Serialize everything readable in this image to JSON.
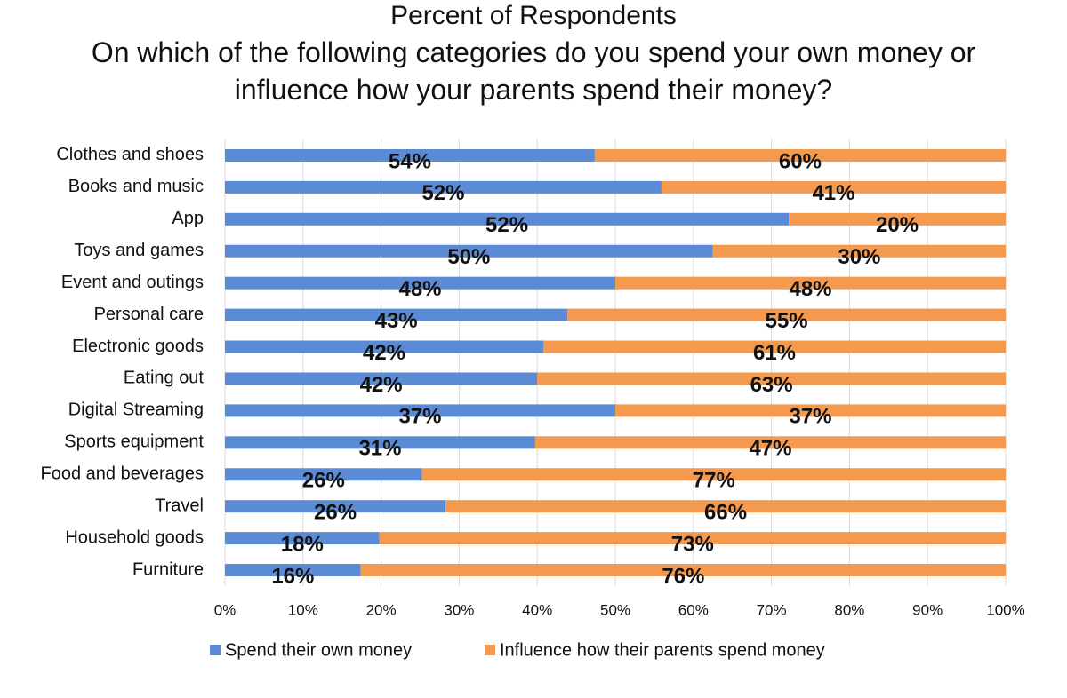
{
  "chart_data": {
    "type": "bar",
    "orientation": "horizontal",
    "stacking": "percent",
    "title": "Percent of Respondents",
    "subtitle": "On which of the following categories do you spend your own money or influence how your parents spend their money?",
    "categories": [
      "Clothes and shoes",
      "Books and music",
      "App",
      "Toys and games",
      "Event and outings",
      "Personal care",
      "Electronic goods",
      "Eating out",
      "Digital Streaming",
      "Sports equipment",
      "Food and beverages",
      "Travel",
      "Household goods",
      "Furniture"
    ],
    "series": [
      {
        "name": "Spend their own money",
        "color": "#5b8bd4",
        "values": [
          54,
          52,
          52,
          50,
          48,
          43,
          42,
          42,
          37,
          31,
          26,
          26,
          18,
          16
        ],
        "value_labels": [
          "54%",
          "52%",
          "52%",
          "50%",
          "48%",
          "43%",
          "42%",
          "42%",
          "37%",
          "31%",
          "26%",
          "26%",
          "18%",
          "16%"
        ]
      },
      {
        "name": "Influence how their parents spend money",
        "color": "#f39a4f",
        "values": [
          60,
          41,
          20,
          30,
          48,
          55,
          61,
          63,
          37,
          47,
          77,
          66,
          73,
          76
        ],
        "value_labels": [
          "60%",
          "41%",
          "20%",
          "30%",
          "48%",
          "55%",
          "61%",
          "63%",
          "37%",
          "47%",
          "77%",
          "66%",
          "73%",
          "76%"
        ]
      }
    ],
    "xlim": [
      0,
      100
    ],
    "xticks": [
      {
        "value": 0,
        "label": "0%"
      },
      {
        "value": 10,
        "label": "10%"
      },
      {
        "value": 20,
        "label": "20%"
      },
      {
        "value": 30,
        "label": "30%"
      },
      {
        "value": 40,
        "label": "40%"
      },
      {
        "value": 50,
        "label": "50%"
      },
      {
        "value": 60,
        "label": "60%"
      },
      {
        "value": 70,
        "label": "70%"
      },
      {
        "value": 80,
        "label": "80%"
      },
      {
        "value": 90,
        "label": "90%"
      },
      {
        "value": 100,
        "label": "100%"
      }
    ],
    "grid": true,
    "legend": "bottom"
  }
}
